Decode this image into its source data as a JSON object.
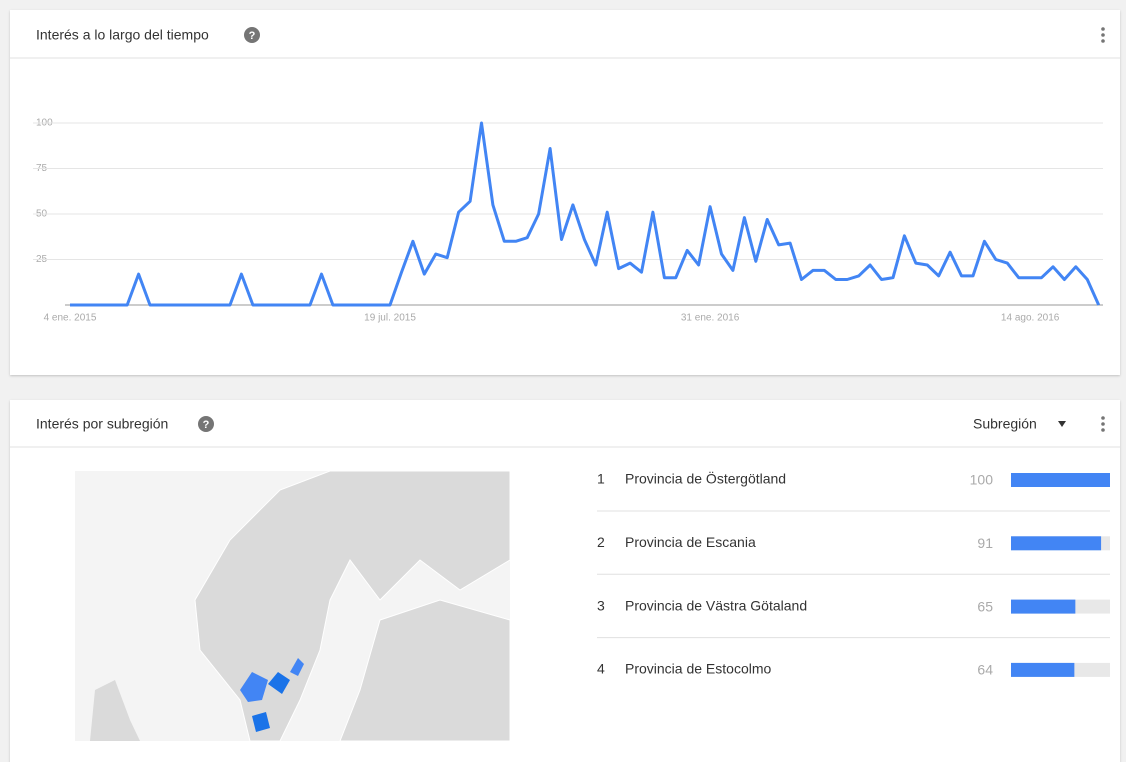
{
  "chart_data": {
    "type": "line",
    "title": "Interés a lo largo del tiempo",
    "categories": [
      "4 ene. 2015",
      null,
      null,
      null,
      null,
      null,
      null,
      null,
      null,
      null,
      null,
      null,
      null,
      null,
      null,
      null,
      null,
      null,
      null,
      null,
      null,
      null,
      null,
      null,
      null,
      null,
      null,
      null,
      "19 jul. 2015",
      null,
      null,
      null,
      null,
      null,
      null,
      null,
      null,
      null,
      null,
      null,
      null,
      null,
      null,
      null,
      null,
      null,
      null,
      null,
      null,
      null,
      null,
      null,
      null,
      null,
      null,
      null,
      "31 ene. 2016",
      null,
      null,
      null,
      null,
      null,
      null,
      null,
      null,
      null,
      null,
      null,
      null,
      null,
      null,
      null,
      null,
      null,
      null,
      null,
      null,
      null,
      null,
      null,
      null,
      null,
      null,
      null,
      "14 ago. 2016",
      null,
      null,
      null,
      null,
      null,
      null
    ],
    "values": [
      0,
      0,
      0,
      0,
      0,
      0,
      17,
      0,
      0,
      0,
      0,
      0,
      0,
      0,
      0,
      17,
      0,
      0,
      0,
      0,
      0,
      0,
      17,
      0,
      0,
      0,
      0,
      0,
      0,
      18,
      35,
      17,
      28,
      26,
      51,
      57,
      100,
      55,
      35,
      35,
      37,
      50,
      86,
      36,
      55,
      36,
      22,
      51,
      20,
      23,
      18,
      51,
      15,
      15,
      30,
      22,
      54,
      28,
      19,
      48,
      24,
      47,
      33,
      34,
      14,
      19,
      19,
      14,
      14,
      16,
      22,
      14,
      15,
      38,
      23,
      22,
      16,
      29,
      16,
      16,
      35,
      25,
      23,
      15,
      15,
      15,
      21,
      14,
      21,
      14,
      0
    ],
    "color": "#4285f4",
    "ylim": [
      0,
      100
    ],
    "yticks": [
      25,
      50,
      75,
      100
    ],
    "grid": true
  },
  "subregion": {
    "title": "Interés por subregión",
    "dropdown": "Subregión",
    "bar_color": "#4285f4",
    "rows": [
      {
        "rank": 1,
        "name": "Provincia de Östergötland",
        "value": 100
      },
      {
        "rank": 2,
        "name": "Provincia de Escania",
        "value": 91
      },
      {
        "rank": 3,
        "name": "Provincia de Västra Götaland",
        "value": 65
      },
      {
        "rank": 4,
        "name": "Provincia de Estocolmo",
        "value": 64
      }
    ]
  }
}
